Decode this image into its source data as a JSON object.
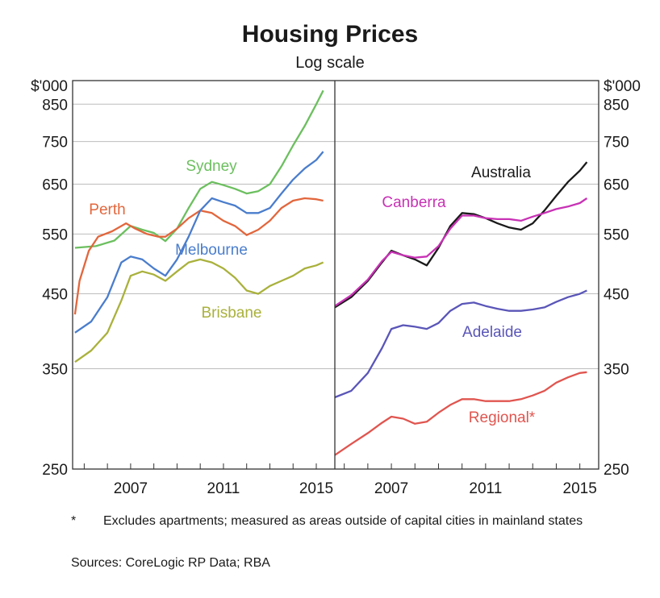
{
  "title": "Housing Prices",
  "subtitle": "Log scale",
  "footnote": {
    "marker": "*",
    "text": "Excludes apartments; measured as areas outside of capital cities in mainland states"
  },
  "sources": "Sources:  CoreLogic RP Data; RBA",
  "chart_data": [
    {
      "type": "line",
      "panel": "left",
      "ylabel": "$'000",
      "yscale": "log",
      "ylim": [
        250,
        920
      ],
      "yticks": [
        250,
        350,
        450,
        550,
        650,
        750,
        850
      ],
      "xlim": [
        2004.5,
        2015.8
      ],
      "xticks": [
        2007,
        2011,
        2015
      ],
      "grid": true,
      "series": [
        {
          "name": "Sydney",
          "color": "#6cbf5f",
          "x": [
            2004.6,
            2005.5,
            2006.3,
            2007.0,
            2007.5,
            2008.0,
            2008.5,
            2009.0,
            2009.5,
            2010.0,
            2010.5,
            2011.0,
            2011.5,
            2012.0,
            2012.5,
            2013.0,
            2013.5,
            2014.0,
            2014.5,
            2015.0,
            2015.3
          ],
          "y": [
            525,
            528,
            538,
            565,
            558,
            552,
            537,
            560,
            600,
            640,
            655,
            648,
            640,
            630,
            635,
            650,
            690,
            740,
            790,
            850,
            890
          ]
        },
        {
          "name": "Perth",
          "color": "#e2663c",
          "x": [
            2004.6,
            2004.8,
            2005.2,
            2005.6,
            2006.2,
            2006.8,
            2007.2,
            2007.7,
            2008.2,
            2008.5,
            2009.0,
            2009.5,
            2010.0,
            2010.5,
            2011.0,
            2011.5,
            2012.0,
            2012.5,
            2013.0,
            2013.5,
            2014.0,
            2014.5,
            2015.0,
            2015.3
          ],
          "y": [
            420,
            470,
            520,
            545,
            555,
            570,
            560,
            550,
            545,
            545,
            560,
            580,
            595,
            590,
            575,
            565,
            548,
            558,
            575,
            600,
            615,
            620,
            618,
            615
          ]
        },
        {
          "name": "Melbourne",
          "color": "#4a7dcc",
          "x": [
            2004.6,
            2005.3,
            2006.0,
            2006.6,
            2007.0,
            2007.5,
            2008.0,
            2008.5,
            2009.0,
            2009.5,
            2010.0,
            2010.5,
            2011.0,
            2011.5,
            2012.0,
            2012.5,
            2013.0,
            2013.5,
            2014.0,
            2014.5,
            2015.0,
            2015.3
          ],
          "y": [
            395,
            410,
            445,
            500,
            510,
            505,
            490,
            478,
            505,
            545,
            595,
            620,
            612,
            605,
            590,
            590,
            600,
            630,
            660,
            685,
            705,
            725
          ]
        },
        {
          "name": "Brisbane",
          "color": "#a9b13b",
          "x": [
            2004.6,
            2005.3,
            2006.0,
            2006.6,
            2007.0,
            2007.5,
            2008.0,
            2008.5,
            2009.0,
            2009.5,
            2010.0,
            2010.5,
            2011.0,
            2011.5,
            2012.0,
            2012.5,
            2013.0,
            2013.5,
            2014.0,
            2014.5,
            2015.0,
            2015.3
          ],
          "y": [
            358,
            372,
            395,
            440,
            478,
            485,
            480,
            470,
            485,
            500,
            505,
            500,
            490,
            475,
            455,
            450,
            462,
            470,
            478,
            490,
            495,
            500
          ]
        }
      ],
      "annotations": [
        "Sydney",
        "Perth",
        "Melbourne",
        "Brisbane"
      ]
    },
    {
      "type": "line",
      "panel": "right",
      "ylabel": "$'000",
      "yscale": "log",
      "ylim": [
        250,
        920
      ],
      "yticks": [
        250,
        350,
        450,
        550,
        650,
        750,
        850
      ],
      "xlim": [
        2004.6,
        2015.8
      ],
      "xticks": [
        2007,
        2011,
        2015
      ],
      "grid": true,
      "series": [
        {
          "name": "Australia",
          "color": "#1a1a1a",
          "x": [
            2004.6,
            2005.3,
            2006.0,
            2006.6,
            2007.0,
            2007.5,
            2008.0,
            2008.5,
            2009.0,
            2009.5,
            2010.0,
            2010.5,
            2011.0,
            2011.5,
            2012.0,
            2012.5,
            2013.0,
            2013.5,
            2014.0,
            2014.5,
            2015.0,
            2015.3
          ],
          "y": [
            430,
            445,
            470,
            500,
            520,
            512,
            505,
            495,
            525,
            565,
            590,
            588,
            580,
            570,
            562,
            558,
            570,
            595,
            625,
            655,
            680,
            700
          ]
        },
        {
          "name": "Canberra",
          "color": "#c832b5",
          "x": [
            2004.6,
            2005.3,
            2006.0,
            2006.6,
            2007.0,
            2007.5,
            2008.0,
            2008.5,
            2009.0,
            2009.5,
            2010.0,
            2010.5,
            2011.0,
            2011.5,
            2012.0,
            2012.5,
            2013.0,
            2013.5,
            2014.0,
            2014.5,
            2015.0,
            2015.3
          ],
          "y": [
            432,
            448,
            472,
            502,
            518,
            512,
            508,
            510,
            528,
            560,
            585,
            585,
            580,
            578,
            578,
            575,
            583,
            590,
            598,
            603,
            610,
            620
          ]
        },
        {
          "name": "Adelaide",
          "color": "#5a56b8",
          "x": [
            2004.6,
            2005.3,
            2006.0,
            2006.6,
            2007.0,
            2007.5,
            2008.0,
            2008.5,
            2009.0,
            2009.5,
            2010.0,
            2010.5,
            2011.0,
            2011.5,
            2012.0,
            2012.5,
            2013.0,
            2013.5,
            2014.0,
            2014.5,
            2015.0,
            2015.3
          ],
          "y": [
            318,
            325,
            345,
            375,
            400,
            405,
            403,
            400,
            408,
            425,
            435,
            437,
            432,
            428,
            425,
            425,
            427,
            430,
            438,
            445,
            450,
            455
          ]
        },
        {
          "name": "Regional*",
          "color": "#e0554f",
          "x": [
            2004.6,
            2005.3,
            2006.0,
            2006.6,
            2007.0,
            2007.5,
            2008.0,
            2008.5,
            2009.0,
            2009.5,
            2010.0,
            2010.5,
            2011.0,
            2011.5,
            2012.0,
            2012.5,
            2013.0,
            2013.5,
            2014.0,
            2014.5,
            2015.0,
            2015.3
          ],
          "y": [
            262,
            272,
            282,
            292,
            298,
            296,
            291,
            293,
            302,
            310,
            316,
            316,
            314,
            314,
            314,
            316,
            320,
            325,
            334,
            340,
            345,
            346
          ]
        }
      ],
      "annotations": [
        "Australia",
        "Canberra",
        "Adelaide",
        "Regional*"
      ]
    }
  ]
}
